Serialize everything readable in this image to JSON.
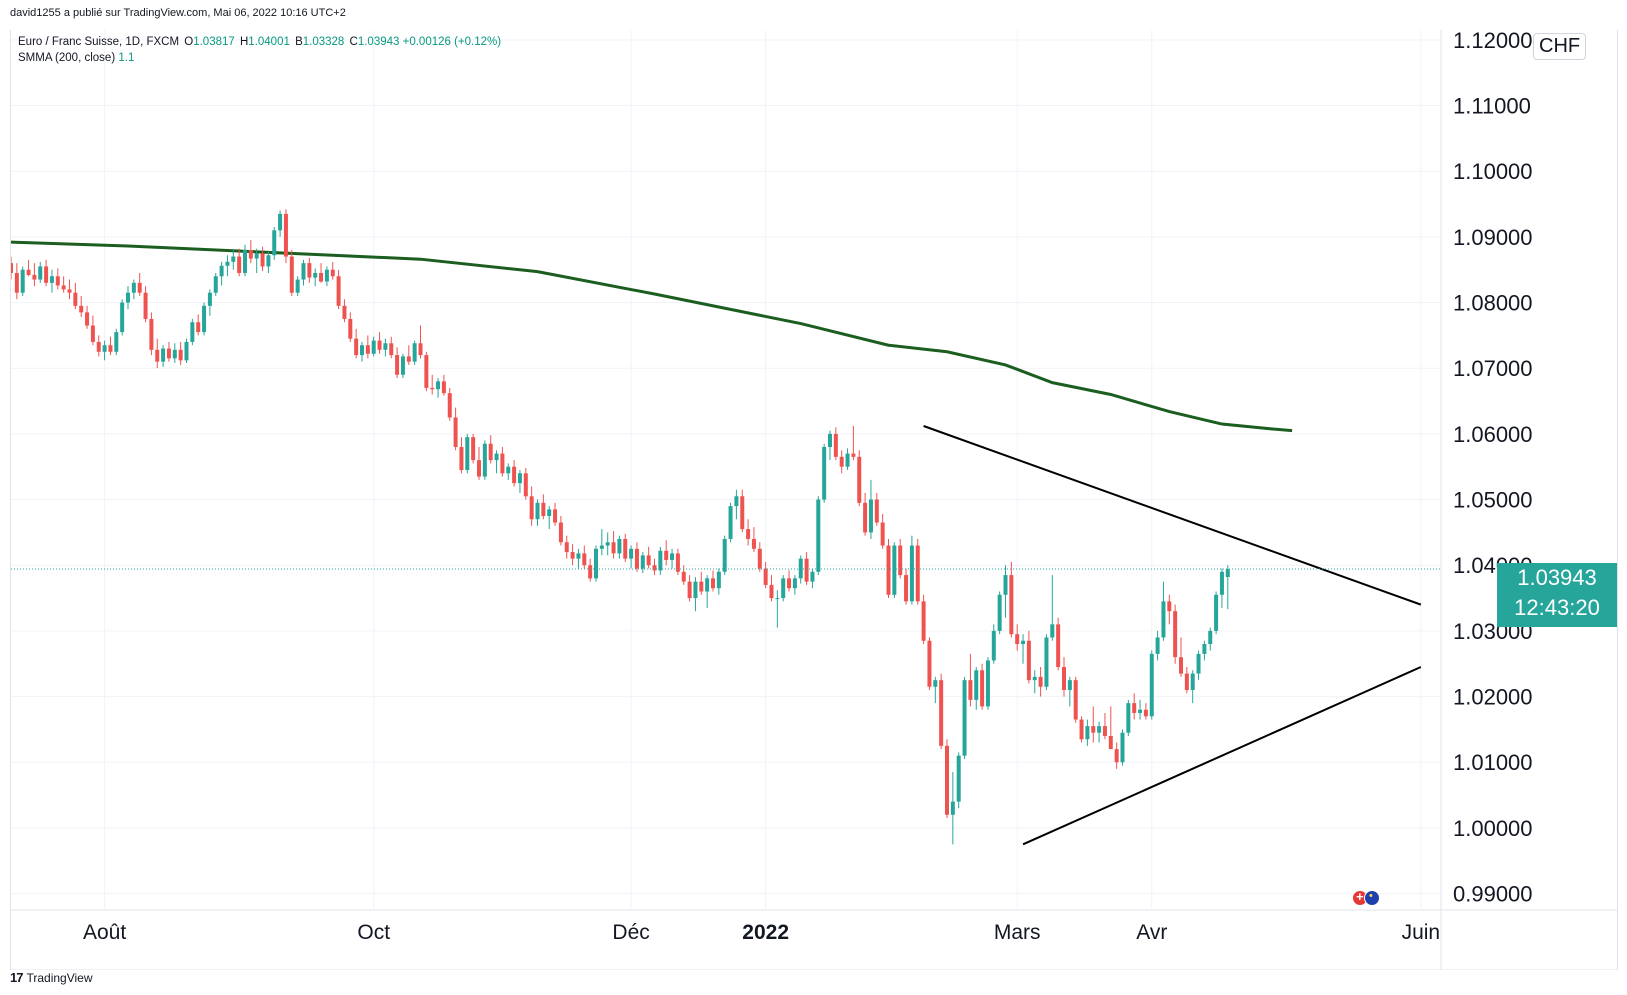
{
  "attribution": "david1255 a publié sur TradingView.com, Mai 06, 2022 10:16 UTC+2",
  "legend": {
    "symbol": "Euro / Franc Suisse, 1D, FXCM",
    "open_label": "O",
    "open": "1.03817",
    "high_label": "H",
    "high": "1.04001",
    "low_label": "B",
    "low": "1.03328",
    "close_label": "C",
    "close": "1.03943",
    "change": "+0.00126 (+0.12%)",
    "indicator": "SMMA (200, close)",
    "indicator_value": "1.1"
  },
  "currency": "CHF",
  "current_price": "1.03943",
  "countdown": "12:43:20",
  "footer_brand": "TradingView",
  "colors": {
    "up": "#26a69a",
    "down": "#ef5350",
    "smma": "#1b5e20",
    "trendline": "#000000",
    "current_line": "#26a69a"
  },
  "chart_data": {
    "type": "candlestick",
    "y_ticks": [
      "1.12000",
      "1.11000",
      "1.10000",
      "1.09000",
      "1.08000",
      "1.07000",
      "1.06000",
      "1.05000",
      "1.04000",
      "1.03000",
      "1.02000",
      "1.01000",
      "1.00000",
      "0.99000"
    ],
    "y_range": [
      0.9875,
      1.1215
    ],
    "x_tick_labels": [
      {
        "label": "Août",
        "index": 16,
        "bold": false
      },
      {
        "label": "Oct",
        "index": 62,
        "bold": false
      },
      {
        "label": "Déc",
        "index": 106,
        "bold": false
      },
      {
        "label": "2022",
        "index": 129,
        "bold": true
      },
      {
        "label": "Mars",
        "index": 172,
        "bold": false
      },
      {
        "label": "Avr",
        "index": 195,
        "bold": false
      },
      {
        "label": "Juin",
        "index": 241,
        "bold": false
      }
    ],
    "x_range": [
      0,
      245
    ],
    "candles": [
      [
        1.086,
        1.087,
        1.0835,
        1.0845
      ],
      [
        1.0845,
        1.086,
        1.0805,
        1.0815
      ],
      [
        1.0815,
        1.0855,
        1.081,
        1.085
      ],
      [
        1.085,
        1.0865,
        1.084,
        1.0842
      ],
      [
        1.0842,
        1.086,
        1.0825,
        1.0835
      ],
      [
        1.0835,
        1.0862,
        1.083,
        1.0855
      ],
      [
        1.0855,
        1.0865,
        1.0825,
        1.083
      ],
      [
        1.083,
        1.085,
        1.0815,
        1.084
      ],
      [
        1.084,
        1.0852,
        1.082,
        1.0826
      ],
      [
        1.0826,
        1.084,
        1.0815,
        1.082
      ],
      [
        1.082,
        1.0835,
        1.0805,
        1.0815
      ],
      [
        1.0815,
        1.083,
        1.079,
        1.0795
      ],
      [
        1.0795,
        1.081,
        1.0778,
        1.0785
      ],
      [
        1.0785,
        1.0795,
        1.076,
        1.0765
      ],
      [
        1.0765,
        1.078,
        1.0735,
        1.074
      ],
      [
        1.074,
        1.075,
        1.0718,
        1.0725
      ],
      [
        1.0725,
        1.0742,
        1.0712,
        1.0735
      ],
      [
        1.0735,
        1.0748,
        1.072,
        1.0725
      ],
      [
        1.0725,
        1.076,
        1.072,
        1.0755
      ],
      [
        1.0755,
        1.0805,
        1.075,
        1.08
      ],
      [
        1.08,
        1.0825,
        1.079,
        1.0815
      ],
      [
        1.0815,
        1.0835,
        1.0805,
        1.083
      ],
      [
        1.083,
        1.0845,
        1.081,
        1.0815
      ],
      [
        1.0815,
        1.0825,
        1.077,
        1.0775
      ],
      [
        1.0775,
        1.0785,
        1.072,
        1.0728
      ],
      [
        1.0728,
        1.0745,
        1.07,
        1.071
      ],
      [
        1.071,
        1.0735,
        1.0702,
        1.073
      ],
      [
        1.073,
        1.074,
        1.071,
        1.0715
      ],
      [
        1.0715,
        1.0738,
        1.0708,
        1.0728
      ],
      [
        1.0728,
        1.074,
        1.0705,
        1.0712
      ],
      [
        1.0712,
        1.0745,
        1.0708,
        1.074
      ],
      [
        1.074,
        1.0775,
        1.0735,
        1.077
      ],
      [
        1.077,
        1.0782,
        1.075,
        1.0755
      ],
      [
        1.0755,
        1.08,
        1.075,
        1.0795
      ],
      [
        1.0795,
        1.082,
        1.078,
        1.0815
      ],
      [
        1.0815,
        1.0845,
        1.081,
        1.084
      ],
      [
        1.084,
        1.0862,
        1.0826,
        1.0856
      ],
      [
        1.0856,
        1.0872,
        1.084,
        1.0862
      ],
      [
        1.0862,
        1.088,
        1.085,
        1.087
      ],
      [
        1.087,
        1.0882,
        1.084,
        1.0845
      ],
      [
        1.0845,
        1.0888,
        1.084,
        1.088
      ],
      [
        1.088,
        1.0895,
        1.086,
        1.0867
      ],
      [
        1.0867,
        1.0882,
        1.0845,
        1.0875
      ],
      [
        1.0875,
        1.0885,
        1.0848,
        1.0855
      ],
      [
        1.0855,
        1.0878,
        1.0845,
        1.0872
      ],
      [
        1.0872,
        1.0915,
        1.0865,
        1.091
      ],
      [
        1.091,
        1.094,
        1.09,
        1.0935
      ],
      [
        1.0935,
        1.0942,
        1.086,
        1.087
      ],
      [
        1.087,
        1.088,
        1.081,
        1.0815
      ],
      [
        1.0815,
        1.084,
        1.081,
        1.0835
      ],
      [
        1.0835,
        1.0865,
        1.0826,
        1.086
      ],
      [
        1.086,
        1.0868,
        1.083,
        1.0838
      ],
      [
        1.0838,
        1.0852,
        1.0825,
        1.0845
      ],
      [
        1.0845,
        1.086,
        1.083,
        1.0832
      ],
      [
        1.0832,
        1.0855,
        1.0825,
        1.085
      ],
      [
        1.085,
        1.0862,
        1.0835,
        1.084
      ],
      [
        1.084,
        1.085,
        1.079,
        1.0795
      ],
      [
        1.0795,
        1.0805,
        1.077,
        1.0775
      ],
      [
        1.0775,
        1.0785,
        1.074,
        1.0745
      ],
      [
        1.0745,
        1.076,
        1.0715,
        1.072
      ],
      [
        1.072,
        1.074,
        1.071,
        1.0735
      ],
      [
        1.0735,
        1.075,
        1.0715,
        1.0722
      ],
      [
        1.0722,
        1.0748,
        1.0718,
        1.0742
      ],
      [
        1.0742,
        1.0755,
        1.0722,
        1.0728
      ],
      [
        1.0728,
        1.0745,
        1.0718,
        1.0738
      ],
      [
        1.0738,
        1.0748,
        1.0715,
        1.072
      ],
      [
        1.072,
        1.0732,
        1.0685,
        1.069
      ],
      [
        1.069,
        1.0722,
        1.0685,
        1.0718
      ],
      [
        1.0718,
        1.0735,
        1.0705,
        1.071
      ],
      [
        1.071,
        1.0742,
        1.0705,
        1.0738
      ],
      [
        1.0738,
        1.0765,
        1.0715,
        1.072
      ],
      [
        1.072,
        1.0725,
        1.0665,
        1.067
      ],
      [
        1.067,
        1.069,
        1.066,
        1.0668
      ],
      [
        1.0668,
        1.0685,
        1.0655,
        1.068
      ],
      [
        1.068,
        1.069,
        1.0658,
        1.0662
      ],
      [
        1.0662,
        1.067,
        1.062,
        1.0625
      ],
      [
        1.0625,
        1.064,
        1.0575,
        1.058
      ],
      [
        1.058,
        1.0595,
        1.054,
        1.0545
      ],
      [
        1.0545,
        1.06,
        1.054,
        1.0595
      ],
      [
        1.0595,
        1.06,
        1.0555,
        1.056
      ],
      [
        1.056,
        1.058,
        1.053,
        1.0535
      ],
      [
        1.0535,
        1.059,
        1.053,
        1.0585
      ],
      [
        1.0585,
        1.0598,
        1.0555,
        1.056
      ],
      [
        1.056,
        1.0575,
        1.054,
        1.057
      ],
      [
        1.057,
        1.058,
        1.0535,
        1.054
      ],
      [
        1.054,
        1.0555,
        1.053,
        1.055
      ],
      [
        1.055,
        1.056,
        1.052,
        1.0525
      ],
      [
        1.0525,
        1.0545,
        1.051,
        1.054
      ],
      [
        1.054,
        1.0548,
        1.05,
        1.0505
      ],
      [
        1.0505,
        1.052,
        1.046,
        1.047
      ],
      [
        1.047,
        1.05,
        1.046,
        1.0495
      ],
      [
        1.0495,
        1.0508,
        1.047,
        1.0475
      ],
      [
        1.0475,
        1.049,
        1.0455,
        1.0485
      ],
      [
        1.0485,
        1.0495,
        1.046,
        1.0465
      ],
      [
        1.0465,
        1.0475,
        1.043,
        1.0435
      ],
      [
        1.0435,
        1.0445,
        1.041,
        1.042
      ],
      [
        1.042,
        1.0432,
        1.04,
        1.041
      ],
      [
        1.041,
        1.0425,
        1.0395,
        1.0418
      ],
      [
        1.0418,
        1.043,
        1.0395,
        1.04
      ],
      [
        1.04,
        1.041,
        1.0375,
        1.038
      ],
      [
        1.038,
        1.043,
        1.0375,
        1.0425
      ],
      [
        1.0425,
        1.0455,
        1.0415,
        1.043
      ],
      [
        1.043,
        1.045,
        1.0415,
        1.0435
      ],
      [
        1.0435,
        1.0452,
        1.041,
        1.0418
      ],
      [
        1.0418,
        1.0445,
        1.041,
        1.044
      ],
      [
        1.044,
        1.0448,
        1.0405,
        1.041
      ],
      [
        1.041,
        1.043,
        1.0395,
        1.0425
      ],
      [
        1.0425,
        1.0435,
        1.039,
        1.0395
      ],
      [
        1.0395,
        1.042,
        1.0388,
        1.0415
      ],
      [
        1.0415,
        1.0428,
        1.0395,
        1.04
      ],
      [
        1.04,
        1.041,
        1.0385,
        1.0392
      ],
      [
        1.0392,
        1.0428,
        1.0385,
        1.0422
      ],
      [
        1.0422,
        1.0438,
        1.04,
        1.0408
      ],
      [
        1.0408,
        1.0425,
        1.0395,
        1.0418
      ],
      [
        1.0418,
        1.0425,
        1.0385,
        1.039
      ],
      [
        1.039,
        1.04,
        1.037,
        1.0375
      ],
      [
        1.0375,
        1.0385,
        1.0345,
        1.035
      ],
      [
        1.035,
        1.0382,
        1.033,
        1.0375
      ],
      [
        1.0375,
        1.039,
        1.0355,
        1.036
      ],
      [
        1.036,
        1.0385,
        1.0335,
        1.038
      ],
      [
        1.038,
        1.0392,
        1.036,
        1.0365
      ],
      [
        1.0365,
        1.0395,
        1.0355,
        1.039
      ],
      [
        1.039,
        1.0445,
        1.0385,
        1.044
      ],
      [
        1.044,
        1.0495,
        1.0435,
        1.049
      ],
      [
        1.049,
        1.0515,
        1.047,
        1.0505
      ],
      [
        1.0505,
        1.0515,
        1.045,
        1.0455
      ],
      [
        1.0455,
        1.047,
        1.043,
        1.044
      ],
      [
        1.044,
        1.0458,
        1.042,
        1.0425
      ],
      [
        1.0425,
        1.0435,
        1.039,
        1.0395
      ],
      [
        1.0395,
        1.0405,
        1.0365,
        1.037
      ],
      [
        1.037,
        1.0385,
        1.0345,
        1.035
      ],
      [
        1.035,
        1.0362,
        1.0305,
        1.035
      ],
      [
        1.035,
        1.0385,
        1.0345,
        1.038
      ],
      [
        1.038,
        1.0392,
        1.036,
        1.0365
      ],
      [
        1.0365,
        1.0385,
        1.0355,
        1.038
      ],
      [
        1.038,
        1.0415,
        1.0372,
        1.041
      ],
      [
        1.041,
        1.042,
        1.037,
        1.0375
      ],
      [
        1.0375,
        1.0395,
        1.0365,
        1.039
      ],
      [
        1.039,
        1.0505,
        1.0385,
        1.05
      ],
      [
        1.05,
        1.0585,
        1.0495,
        1.058
      ],
      [
        1.058,
        1.0605,
        1.056,
        1.06
      ],
      [
        1.06,
        1.061,
        1.056,
        1.0565
      ],
      [
        1.0565,
        1.0575,
        1.054,
        1.055
      ],
      [
        1.055,
        1.0578,
        1.0545,
        1.057
      ],
      [
        1.057,
        1.0612,
        1.056,
        1.0565
      ],
      [
        1.0565,
        1.0575,
        1.049,
        1.0495
      ],
      [
        1.0495,
        1.051,
        1.0445,
        1.045
      ],
      [
        1.045,
        1.053,
        1.044,
        1.05
      ],
      [
        1.05,
        1.051,
        1.046,
        1.0465
      ],
      [
        1.0465,
        1.0478,
        1.0425,
        1.043
      ],
      [
        1.043,
        1.044,
        1.035,
        1.0355
      ],
      [
        1.0355,
        1.0435,
        1.035,
        1.043
      ],
      [
        1.043,
        1.044,
        1.038,
        1.0385
      ],
      [
        1.0385,
        1.0395,
        1.034,
        1.0345
      ],
      [
        1.0345,
        1.0445,
        1.034,
        1.043
      ],
      [
        1.043,
        1.044,
        1.034,
        1.0345
      ],
      [
        1.0345,
        1.0355,
        1.028,
        1.0285
      ],
      [
        1.0285,
        1.029,
        1.021,
        1.0215
      ],
      [
        1.0215,
        1.023,
        1.019,
        1.0225
      ],
      [
        1.0225,
        1.0235,
        1.012,
        1.0125
      ],
      [
        1.0125,
        1.0135,
        1.0015,
        1.002
      ],
      [
        1.002,
        1.0085,
        0.9975,
        1.004
      ],
      [
        1.004,
        1.0115,
        1.003,
        1.011
      ],
      [
        1.011,
        1.023,
        1.0105,
        1.0225
      ],
      [
        1.0225,
        1.0265,
        1.0185,
        1.0195
      ],
      [
        1.0195,
        1.0245,
        1.018,
        1.024
      ],
      [
        1.024,
        1.025,
        1.018,
        1.0185
      ],
      [
        1.0185,
        1.026,
        1.018,
        1.0255
      ],
      [
        1.0255,
        1.031,
        1.025,
        1.03
      ],
      [
        1.03,
        1.036,
        1.0295,
        1.0355
      ],
      [
        1.0355,
        1.04,
        1.032,
        1.0385
      ],
      [
        1.0385,
        1.0405,
        1.029,
        1.0295
      ],
      [
        1.0295,
        1.031,
        1.027,
        1.028
      ],
      [
        1.028,
        1.0295,
        1.025,
        1.0285
      ],
      [
        1.0285,
        1.03,
        1.022,
        1.0225
      ],
      [
        1.0225,
        1.024,
        1.0205,
        1.023
      ],
      [
        1.023,
        1.0245,
        1.02,
        1.0215
      ],
      [
        1.0215,
        1.0295,
        1.021,
        1.029
      ],
      [
        1.029,
        1.0385,
        1.0285,
        1.031
      ],
      [
        1.031,
        1.032,
        1.024,
        1.0245
      ],
      [
        1.0245,
        1.026,
        1.02,
        1.021
      ],
      [
        1.021,
        1.023,
        1.0185,
        1.0225
      ],
      [
        1.0225,
        1.023,
        1.016,
        1.0165
      ],
      [
        1.0165,
        1.017,
        1.013,
        1.0135
      ],
      [
        1.0135,
        1.0165,
        1.0125,
        1.0155
      ],
      [
        1.0155,
        1.0185,
        1.013,
        1.0145
      ],
      [
        1.0145,
        1.0162,
        1.013,
        1.0155
      ],
      [
        1.0155,
        1.0175,
        1.0135,
        1.014
      ],
      [
        1.014,
        1.0185,
        1.0125,
        1.012
      ],
      [
        1.012,
        1.013,
        1.009,
        1.01
      ],
      [
        1.01,
        1.015,
        1.0095,
        1.0145
      ],
      [
        1.0145,
        1.0195,
        1.014,
        1.019
      ],
      [
        1.019,
        1.0205,
        1.0165,
        1.0175
      ],
      [
        1.0175,
        1.0195,
        1.0165,
        1.018
      ],
      [
        1.018,
        1.019,
        1.0165,
        1.017
      ],
      [
        1.017,
        1.027,
        1.0165,
        1.0265
      ],
      [
        1.0265,
        1.03,
        1.0255,
        1.029
      ],
      [
        1.029,
        1.0375,
        1.0285,
        1.0345
      ],
      [
        1.0345,
        1.0355,
        1.031,
        1.033
      ],
      [
        1.033,
        1.034,
        1.025,
        1.026
      ],
      [
        1.026,
        1.029,
        1.023,
        1.0235
      ],
      [
        1.0235,
        1.0245,
        1.0205,
        1.021
      ],
      [
        1.021,
        1.024,
        1.019,
        1.0235
      ],
      [
        1.0235,
        1.027,
        1.0225,
        1.0265
      ],
      [
        1.0265,
        1.0285,
        1.0255,
        1.028
      ],
      [
        1.028,
        1.0305,
        1.027,
        1.03
      ],
      [
        1.03,
        1.036,
        1.0295,
        1.0355
      ],
      [
        1.0355,
        1.0395,
        1.0335,
        1.039
      ],
      [
        1.0382,
        1.04,
        1.0333,
        1.0394
      ]
    ],
    "smma": [
      [
        0,
        1.0892
      ],
      [
        20,
        1.0886
      ],
      [
        45,
        1.0876
      ],
      [
        70,
        1.0866
      ],
      [
        90,
        1.0847
      ],
      [
        110,
        1.0813
      ],
      [
        135,
        1.0768
      ],
      [
        150,
        1.0735
      ],
      [
        160,
        1.0725
      ],
      [
        170,
        1.0705
      ],
      [
        178,
        1.0678
      ],
      [
        188,
        1.066
      ],
      [
        198,
        1.0634
      ],
      [
        207,
        1.0615
      ],
      [
        215,
        1.0608
      ],
      [
        219,
        1.0605
      ]
    ],
    "trendlines": [
      {
        "name": "upper-trendline",
        "from": [
          156,
          1.0612
        ],
        "to": [
          241,
          1.034
        ]
      },
      {
        "name": "lower-trendline",
        "from": [
          173,
          0.9975
        ],
        "to": [
          241,
          1.0245
        ]
      }
    ],
    "current_price": 1.03943
  }
}
